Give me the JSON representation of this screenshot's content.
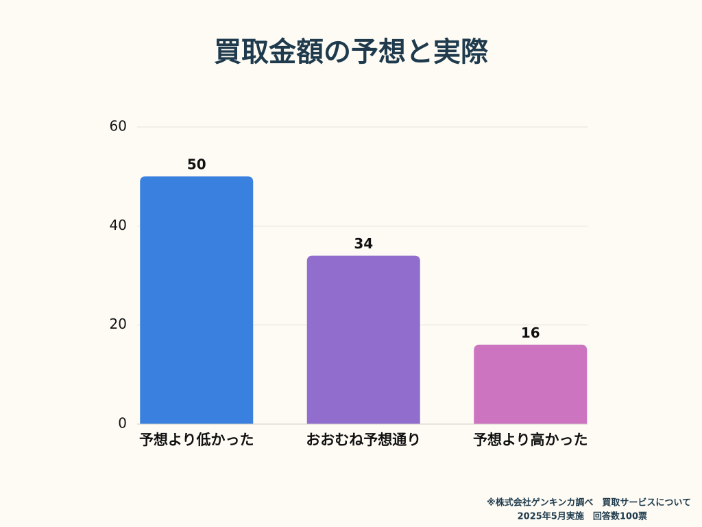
{
  "chart_data": {
    "type": "bar",
    "title": "買取金額の予想と実際",
    "categories": [
      "予想より低かった",
      "おおむね予想通り",
      "予想より高かった"
    ],
    "values": [
      50,
      34,
      16
    ],
    "colors": [
      "#3a80de",
      "#916ecd",
      "#cc74c0"
    ],
    "ylim": [
      0,
      60
    ],
    "yticks": [
      0,
      20,
      40,
      60
    ],
    "grid": true,
    "notes": [
      "※株式会社ゲンキンカ調べ　買取サービスについて",
      "2025年5月実施　回答数100票"
    ]
  }
}
